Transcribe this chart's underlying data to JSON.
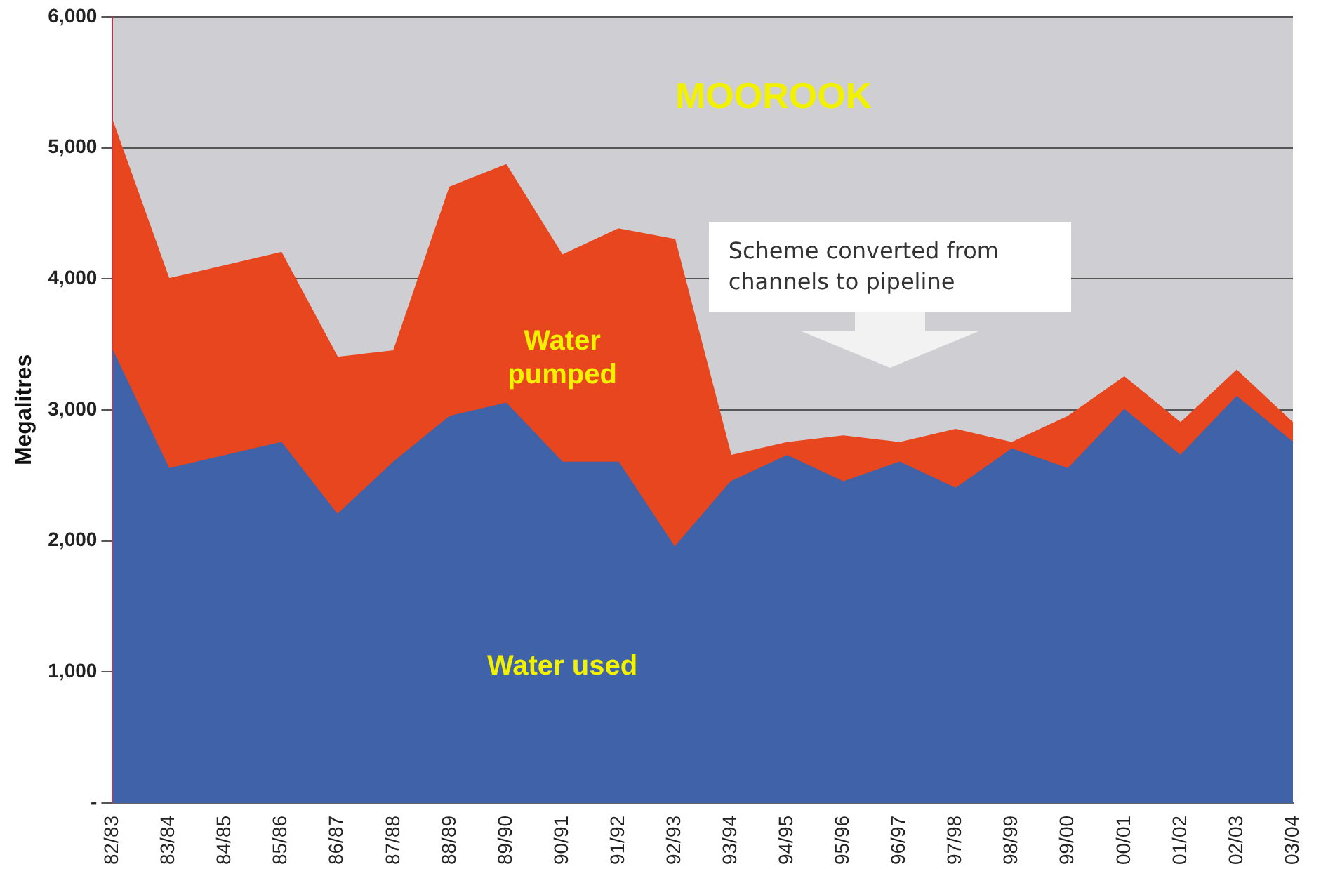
{
  "chart_data": {
    "type": "area",
    "title": "MOOROOK",
    "ylabel": "Megalitres",
    "categories": [
      "82/83",
      "83/84",
      "84/85",
      "85/86",
      "86/87",
      "87/88",
      "88/89",
      "89/90",
      "90/91",
      "91/92",
      "92/93",
      "93/94",
      "94/95",
      "95/96",
      "96/97",
      "97/98",
      "98/99",
      "99/00",
      "00/01",
      "01/02",
      "02/03",
      "03/04"
    ],
    "series": [
      {
        "name": "Water pumped",
        "color": "#e8461e",
        "values": [
          5200,
          4000,
          4100,
          4200,
          3400,
          3450,
          4700,
          4870,
          4180,
          4380,
          4300,
          2650,
          2750,
          2800,
          2750,
          2850,
          2750,
          2950,
          3250,
          2900,
          3300,
          2900
        ]
      },
      {
        "name": "Water used",
        "color": "#3f62a8",
        "values": [
          3450,
          2550,
          2650,
          2750,
          2200,
          2600,
          2950,
          3050,
          2600,
          2600,
          1950,
          2450,
          2650,
          2450,
          2600,
          2400,
          2700,
          2550,
          3000,
          2650,
          3100,
          2750
        ]
      }
    ],
    "ylim": [
      0,
      6000
    ],
    "yticks": [
      {
        "value": 0,
        "label": "-"
      },
      {
        "value": 1000,
        "label": "1,000"
      },
      {
        "value": 2000,
        "label": "2,000"
      },
      {
        "value": 3000,
        "label": "3,000"
      },
      {
        "value": 4000,
        "label": "4,000"
      },
      {
        "value": 5000,
        "label": "5,000"
      },
      {
        "value": 6000,
        "label": "6,000"
      }
    ],
    "grid": "y",
    "legend": false,
    "annotations": [
      "Scheme converted from channels to pipeline"
    ]
  }
}
